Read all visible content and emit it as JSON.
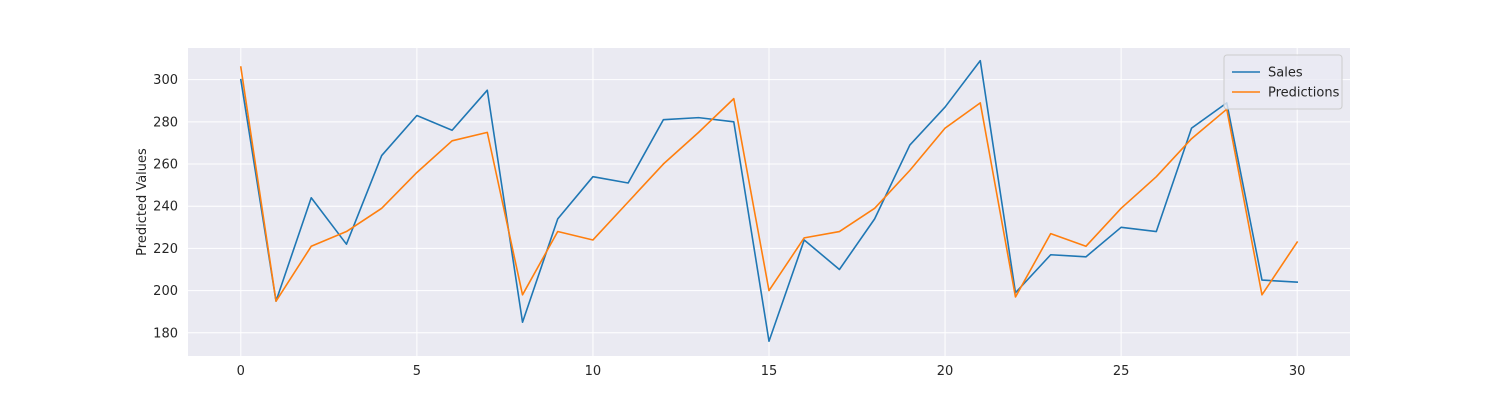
{
  "chart_data": {
    "type": "line",
    "title": "",
    "xlabel": "",
    "ylabel": "Predicted Values",
    "xlim": [
      -1.5,
      31.5
    ],
    "ylim": [
      169,
      315
    ],
    "xticks": [
      0,
      5,
      10,
      15,
      20,
      25,
      30
    ],
    "yticks": [
      180,
      200,
      220,
      240,
      260,
      280,
      300
    ],
    "grid": true,
    "legend": "top-right",
    "x": [
      0,
      1,
      2,
      3,
      4,
      5,
      6,
      7,
      8,
      9,
      10,
      11,
      12,
      13,
      14,
      15,
      16,
      17,
      18,
      19,
      20,
      21,
      22,
      23,
      24,
      25,
      26,
      27,
      28,
      29,
      30
    ],
    "series": [
      {
        "name": "Sales",
        "color": "#1f77b4",
        "values": [
          300,
          195,
          244,
          222,
          264,
          283,
          276,
          295,
          185,
          234,
          254,
          251,
          281,
          282,
          280,
          176,
          224,
          210,
          234,
          269,
          287,
          309,
          199,
          217,
          216,
          230,
          228,
          277,
          289,
          205,
          204
        ]
      },
      {
        "name": "Predictions",
        "color": "#ff7f0e",
        "values": [
          306,
          195,
          221,
          228,
          239,
          256,
          271,
          275,
          198,
          228,
          224,
          242,
          260,
          275,
          291,
          200,
          225,
          228,
          239,
          257,
          277,
          289,
          197,
          227,
          221,
          239,
          254,
          272,
          286,
          198,
          223
        ]
      }
    ]
  }
}
